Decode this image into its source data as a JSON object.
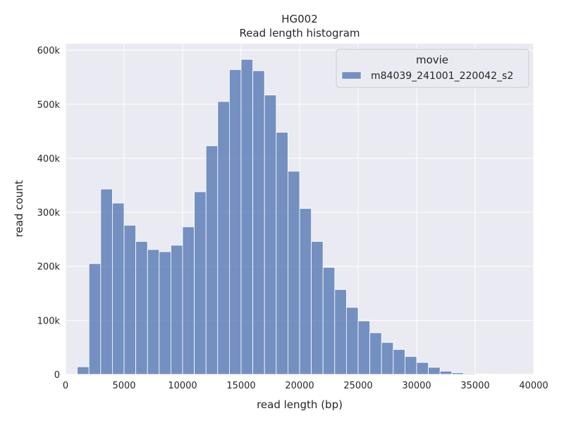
{
  "chart_data": {
    "type": "bar",
    "title": "HG002",
    "subtitle": "Read length histogram",
    "xlabel": "read length (bp)",
    "ylabel": "read count",
    "xlim": [
      0,
      40000
    ],
    "ylim": [
      0,
      612000
    ],
    "x_ticks": [
      0,
      5000,
      10000,
      15000,
      20000,
      25000,
      30000,
      35000,
      40000
    ],
    "x_tick_labels": [
      "0",
      "5000",
      "10000",
      "15000",
      "20000",
      "25000",
      "30000",
      "35000",
      "40000"
    ],
    "y_ticks": [
      0,
      100000,
      200000,
      300000,
      400000,
      500000,
      600000
    ],
    "y_tick_labels": [
      "0",
      "100k",
      "200k",
      "300k",
      "400k",
      "500k",
      "600k"
    ],
    "grid": true,
    "legend": {
      "title": "movie",
      "placement": "top-right",
      "entries": [
        "m84039_241001_220042_s2"
      ]
    },
    "colors": {
      "background": "#eaeaf2",
      "bar": "#4c72b0",
      "grid": "#ffffff"
    },
    "bin_edges": [
      1000,
      2000,
      3000,
      4000,
      5000,
      6000,
      7000,
      8000,
      9000,
      10000,
      11000,
      12000,
      13000,
      14000,
      15000,
      16000,
      17000,
      18000,
      19000,
      20000,
      21000,
      22000,
      23000,
      24000,
      25000,
      26000,
      27000,
      28000,
      29000,
      30000,
      31000,
      32000,
      33000,
      34000,
      35000,
      36000,
      37000,
      38000,
      39000,
      40000
    ],
    "series": [
      {
        "name": "m84039_241001_220042_s2",
        "values": [
          14000,
          205000,
          343000,
          317000,
          276000,
          246000,
          231000,
          227000,
          239000,
          273000,
          338000,
          423000,
          505000,
          564000,
          583000,
          562000,
          517000,
          448000,
          376000,
          307000,
          246000,
          198000,
          157000,
          124000,
          99000,
          77000,
          59000,
          46000,
          33000,
          22000,
          13000,
          6000,
          3000,
          1500,
          800,
          500,
          300,
          200,
          100
        ]
      }
    ]
  }
}
